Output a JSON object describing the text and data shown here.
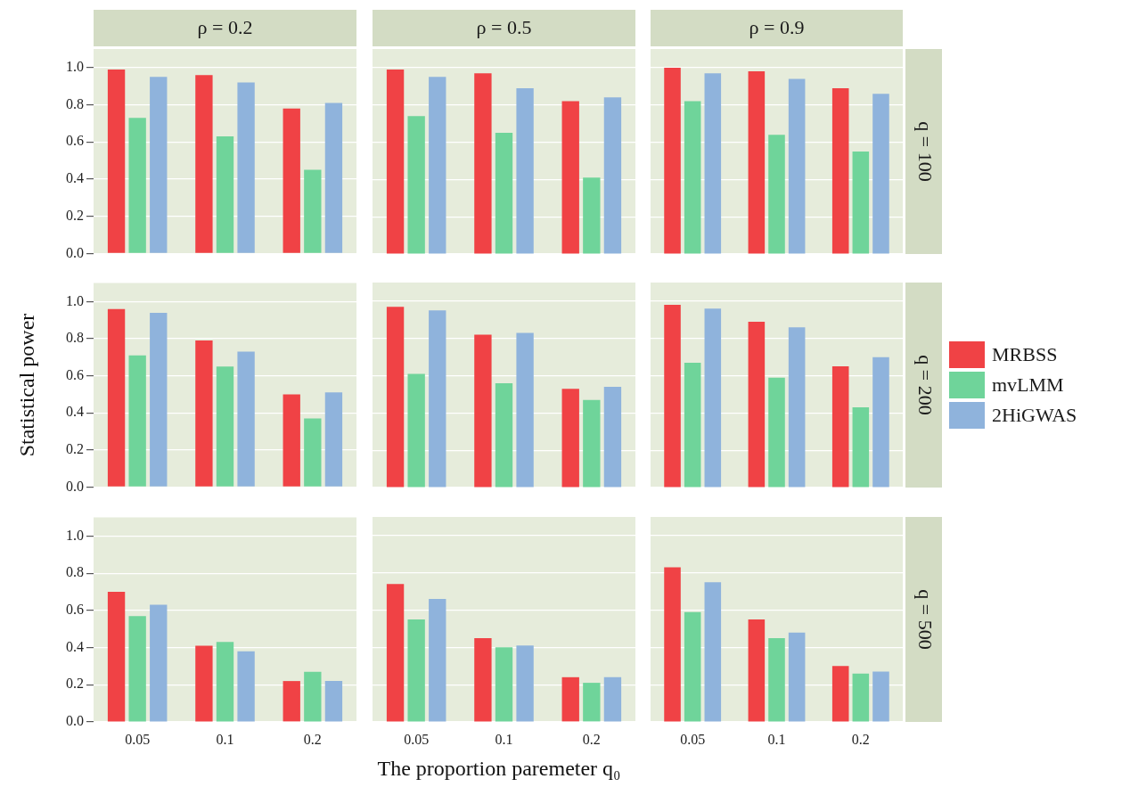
{
  "chart_data": [
    {
      "type": "bar",
      "title": "ρ = 0.2",
      "categories": [
        "0.05",
        "0.1",
        "0.2"
      ],
      "series": [
        {
          "color": "#f04245",
          "values": [
            0.99,
            0.96,
            0.78
          ]
        },
        {
          "color": "#6fd49a",
          "values": [
            0.73,
            0.63,
            0.45
          ]
        },
        {
          "color": "#8fb3dc",
          "values": [
            0.95,
            0.92,
            0.81
          ]
        }
      ],
      "ylim": [
        0,
        1.1
      ],
      "yticks": [
        {
          "value": 0,
          "label": "0.0"
        },
        {
          "value": 0.2,
          "label": "0.2"
        },
        {
          "value": 0.4,
          "label": "0.4"
        },
        {
          "value": 0.6,
          "label": "0.6"
        },
        {
          "value": 0.8,
          "label": "0.8"
        },
        {
          "value": 1,
          "label": "1.0"
        }
      ],
      "grid": "y",
      "tick_labels": "y"
    },
    {
      "type": "bar",
      "title": "ρ = 0.5",
      "categories": [
        "0.05",
        "0.1",
        "0.2"
      ],
      "series": [
        {
          "color": "#f04245",
          "values": [
            0.99,
            0.97,
            0.82
          ]
        },
        {
          "color": "#6fd49a",
          "values": [
            0.74,
            0.65,
            0.41
          ]
        },
        {
          "color": "#8fb3dc",
          "values": [
            0.95,
            0.89,
            0.84
          ]
        }
      ],
      "ylim": [
        0,
        1.1
      ],
      "yticks": [
        {
          "value": 0,
          "label": null
        },
        {
          "value": 0.2,
          "label": null
        },
        {
          "value": 0.4,
          "label": null
        },
        {
          "value": 0.6,
          "label": null
        },
        {
          "value": 0.8,
          "label": null
        },
        {
          "value": 1,
          "label": null
        }
      ],
      "grid": "y",
      "tick_labels": false
    },
    {
      "type": "bar",
      "title": "ρ = 0.9",
      "y2label": "q = 100",
      "categories": [
        "0.05",
        "0.1",
        "0.2"
      ],
      "series": [
        {
          "color": "#f04245",
          "values": [
            1.0,
            0.98,
            0.89
          ]
        },
        {
          "color": "#6fd49a",
          "values": [
            0.82,
            0.64,
            0.55
          ]
        },
        {
          "color": "#8fb3dc",
          "values": [
            0.97,
            0.94,
            0.86
          ]
        }
      ],
      "ylim": [
        0,
        1.1
      ],
      "yticks": [
        {
          "value": 0,
          "label": null
        },
        {
          "value": 0.2,
          "label": null
        },
        {
          "value": 0.4,
          "label": null
        },
        {
          "value": 0.6,
          "label": null
        },
        {
          "value": 0.8,
          "label": null
        },
        {
          "value": 1,
          "label": null
        }
      ],
      "grid": "y",
      "tick_labels": false
    },
    {
      "type": "bar",
      "ylabel": "Statistical power",
      "categories": [
        "0.05",
        "0.1",
        "0.2"
      ],
      "series": [
        {
          "color": "#f04245",
          "values": [
            0.96,
            0.79,
            0.5
          ]
        },
        {
          "color": "#6fd49a",
          "values": [
            0.71,
            0.65,
            0.37
          ]
        },
        {
          "color": "#8fb3dc",
          "values": [
            0.94,
            0.73,
            0.51
          ]
        }
      ],
      "ylim": [
        0,
        1.1
      ],
      "yticks": [
        {
          "value": 0,
          "label": "0.0"
        },
        {
          "value": 0.2,
          "label": "0.2"
        },
        {
          "value": 0.4,
          "label": "0.4"
        },
        {
          "value": 0.6,
          "label": "0.6"
        },
        {
          "value": 0.8,
          "label": "0.8"
        },
        {
          "value": 1,
          "label": "1.0"
        }
      ],
      "grid": "y",
      "tick_labels": "y"
    },
    {
      "type": "bar",
      "categories": [
        "0.05",
        "0.1",
        "0.2"
      ],
      "series": [
        {
          "color": "#f04245",
          "values": [
            0.97,
            0.82,
            0.53
          ]
        },
        {
          "color": "#6fd49a",
          "values": [
            0.61,
            0.56,
            0.47
          ]
        },
        {
          "color": "#8fb3dc",
          "values": [
            0.95,
            0.83,
            0.54
          ]
        }
      ],
      "ylim": [
        0,
        1.1
      ],
      "yticks": [
        {
          "value": 0,
          "label": null
        },
        {
          "value": 0.2,
          "label": null
        },
        {
          "value": 0.4,
          "label": null
        },
        {
          "value": 0.6,
          "label": null
        },
        {
          "value": 0.8,
          "label": null
        },
        {
          "value": 1,
          "label": null
        }
      ],
      "grid": "y",
      "tick_labels": false
    },
    {
      "type": "bar",
      "y2label": "q = 200",
      "legend": "right",
      "categories": [
        "0.05",
        "0.1",
        "0.2"
      ],
      "series": [
        {
          "name": "MRBSS",
          "color": "#f04245",
          "values": [
            0.98,
            0.89,
            0.65
          ]
        },
        {
          "name": "mvLMM",
          "color": "#6fd49a",
          "values": [
            0.67,
            0.59,
            0.43
          ]
        },
        {
          "name": "2HiGWAS",
          "color": "#8fb3dc",
          "values": [
            0.96,
            0.86,
            0.7
          ]
        }
      ],
      "ylim": [
        0,
        1.1
      ],
      "yticks": [
        {
          "value": 0,
          "label": null
        },
        {
          "value": 0.2,
          "label": null
        },
        {
          "value": 0.4,
          "label": null
        },
        {
          "value": 0.6,
          "label": null
        },
        {
          "value": 0.8,
          "label": null
        },
        {
          "value": 1,
          "label": null
        }
      ],
      "grid": "y",
      "tick_labels": false
    },
    {
      "type": "bar",
      "categories": [
        "0.05",
        "0.1",
        "0.2"
      ],
      "series": [
        {
          "color": "#f04245",
          "values": [
            0.7,
            0.41,
            0.22
          ]
        },
        {
          "color": "#6fd49a",
          "values": [
            0.57,
            0.43,
            0.27
          ]
        },
        {
          "color": "#8fb3dc",
          "values": [
            0.63,
            0.38,
            0.22
          ]
        }
      ],
      "ylim": [
        0,
        1.1
      ],
      "yticks": [
        {
          "value": 0,
          "label": "0.0"
        },
        {
          "value": 0.2,
          "label": "0.2"
        },
        {
          "value": 0.4,
          "label": "0.4"
        },
        {
          "value": 0.6,
          "label": "0.6"
        },
        {
          "value": 0.8,
          "label": "0.8"
        },
        {
          "value": 1,
          "label": "1.0"
        }
      ],
      "grid": "y"
    },
    {
      "type": "bar",
      "xlabel": "The proportion paremeter q₀",
      "categories": [
        "0.05",
        "0.1",
        "0.2"
      ],
      "series": [
        {
          "color": "#f04245",
          "values": [
            0.74,
            0.45,
            0.24
          ]
        },
        {
          "color": "#6fd49a",
          "values": [
            0.55,
            0.4,
            0.21
          ]
        },
        {
          "color": "#8fb3dc",
          "values": [
            0.66,
            0.41,
            0.24
          ]
        }
      ],
      "ylim": [
        0,
        1.1
      ],
      "yticks": [
        {
          "value": 0,
          "label": null
        },
        {
          "value": 0.2,
          "label": null
        },
        {
          "value": 0.4,
          "label": null
        },
        {
          "value": 0.6,
          "label": null
        },
        {
          "value": 0.8,
          "label": null
        },
        {
          "value": 1,
          "label": null
        }
      ],
      "grid": "y",
      "tick_labels": "x"
    },
    {
      "type": "bar",
      "y2label": "q = 500",
      "categories": [
        "0.05",
        "0.1",
        "0.2"
      ],
      "series": [
        {
          "color": "#f04245",
          "values": [
            0.83,
            0.55,
            0.3
          ]
        },
        {
          "color": "#6fd49a",
          "values": [
            0.59,
            0.45,
            0.26
          ]
        },
        {
          "color": "#8fb3dc",
          "values": [
            0.75,
            0.48,
            0.27
          ]
        }
      ],
      "ylim": [
        0,
        1.1
      ],
      "yticks": [
        {
          "value": 0,
          "label": null
        },
        {
          "value": 0.2,
          "label": null
        },
        {
          "value": 0.4,
          "label": null
        },
        {
          "value": 0.6,
          "label": null
        },
        {
          "value": 0.8,
          "label": null
        },
        {
          "value": 1,
          "label": null
        }
      ],
      "grid": "y",
      "tick_labels": "x"
    }
  ]
}
